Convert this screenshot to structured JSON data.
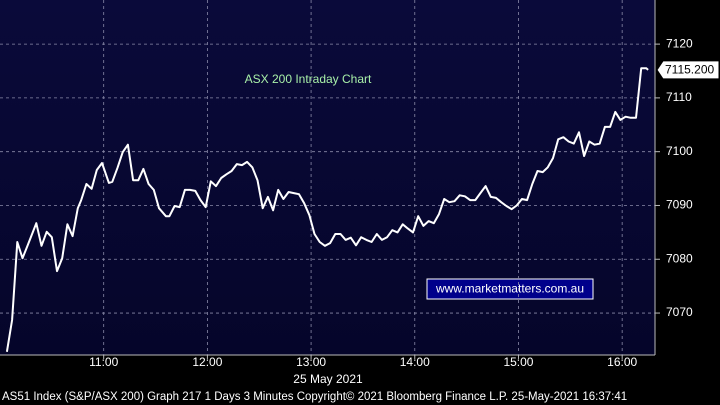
{
  "chart_data": {
    "type": "line",
    "title": "ASX 200 Intraday Chart",
    "x_label": "25 May 2021",
    "watermark": "www.marketmatters.com.au",
    "footer": "AS51 Index (S&P/ASX 200) Graph 217 1 Days 3 Minutes Copyright© 2021 Bloomberg Finance L.P. 25-May-2021 16:37:41",
    "color": "#ffffff",
    "grid": true,
    "x": [
      604,
      607,
      610,
      613,
      616,
      621,
      624,
      627,
      630,
      633,
      636,
      639,
      642,
      645,
      647,
      650,
      653,
      656,
      659,
      663,
      665,
      668,
      671,
      674,
      677,
      680,
      683,
      686,
      689,
      692,
      696,
      698,
      701,
      704,
      707,
      710,
      713,
      716,
      719,
      722,
      725,
      728,
      731,
      734,
      737,
      740,
      743,
      746,
      749,
      752,
      755,
      758,
      761,
      764,
      767,
      770,
      773,
      776,
      779,
      782,
      785,
      788,
      791,
      794,
      797,
      800,
      803,
      806,
      809,
      812,
      815,
      818,
      821,
      824,
      827,
      830,
      833,
      836,
      839,
      842,
      845,
      848,
      851,
      854,
      857,
      860,
      863,
      866,
      869,
      872,
      875,
      878,
      881,
      884,
      887,
      890,
      893,
      896,
      899,
      902,
      905,
      908,
      911,
      914,
      917,
      920,
      923,
      926,
      929,
      932,
      935,
      938,
      941,
      944,
      947,
      950,
      953,
      956,
      959,
      962,
      965,
      968,
      971,
      974,
      975
    ],
    "values": [
      7062.8,
      7068.7,
      7083.2,
      7080.2,
      7082.6,
      7086.7,
      7082.5,
      7085.1,
      7084.1,
      7077.8,
      7080.2,
      7086.5,
      7084.3,
      7089.5,
      7091.0,
      7094.0,
      7093.1,
      7096.6,
      7097.9,
      7094.2,
      7094.4,
      7097.0,
      7099.9,
      7101.3,
      7094.7,
      7094.7,
      7096.8,
      7094.0,
      7092.9,
      7089.5,
      7088.0,
      7088.0,
      7089.9,
      7089.7,
      7092.9,
      7092.9,
      7092.7,
      7091.0,
      7089.7,
      7094.5,
      7093.6,
      7095.1,
      7095.8,
      7096.4,
      7097.7,
      7097.5,
      7098.1,
      7097.1,
      7094.7,
      7089.5,
      7091.6,
      7089.1,
      7092.9,
      7091.2,
      7092.5,
      7092.3,
      7092.1,
      7090.4,
      7088.2,
      7084.7,
      7083.2,
      7082.5,
      7083.0,
      7084.7,
      7084.7,
      7083.6,
      7084.0,
      7082.6,
      7084.1,
      7083.6,
      7083.2,
      7084.7,
      7083.6,
      7084.1,
      7085.4,
      7085.0,
      7086.5,
      7085.7,
      7085.0,
      7088.0,
      7086.2,
      7087.1,
      7086.7,
      7088.4,
      7091.2,
      7090.6,
      7090.8,
      7091.9,
      7091.7,
      7091.0,
      7091.0,
      7092.3,
      7093.6,
      7091.6,
      7091.4,
      7090.6,
      7089.9,
      7089.3,
      7090.0,
      7091.2,
      7091.0,
      7094.0,
      7096.4,
      7096.2,
      7097.1,
      7098.8,
      7102.3,
      7102.7,
      7101.9,
      7101.5,
      7103.6,
      7099.2,
      7101.9,
      7101.3,
      7101.5,
      7104.6,
      7104.6,
      7107.4,
      7105.9,
      7106.5,
      7106.3,
      7106.3,
      7115.5,
      7115.5,
      7115.2
    ],
    "last_price": {
      "value": 7115.2,
      "label": "7115.200"
    },
    "xlim": [
      600,
      979
    ],
    "xticks": [
      {
        "value": 660,
        "label": "11:00"
      },
      {
        "value": 720,
        "label": "12:00"
      },
      {
        "value": 780,
        "label": "13:00"
      },
      {
        "value": 840,
        "label": "14:00"
      },
      {
        "value": 900,
        "label": "15:00"
      },
      {
        "value": 960,
        "label": "16:00"
      }
    ],
    "ylim": [
      7062.2,
      7128.2
    ],
    "yticks": [
      7070,
      7080,
      7090,
      7100,
      7110,
      7120
    ]
  }
}
